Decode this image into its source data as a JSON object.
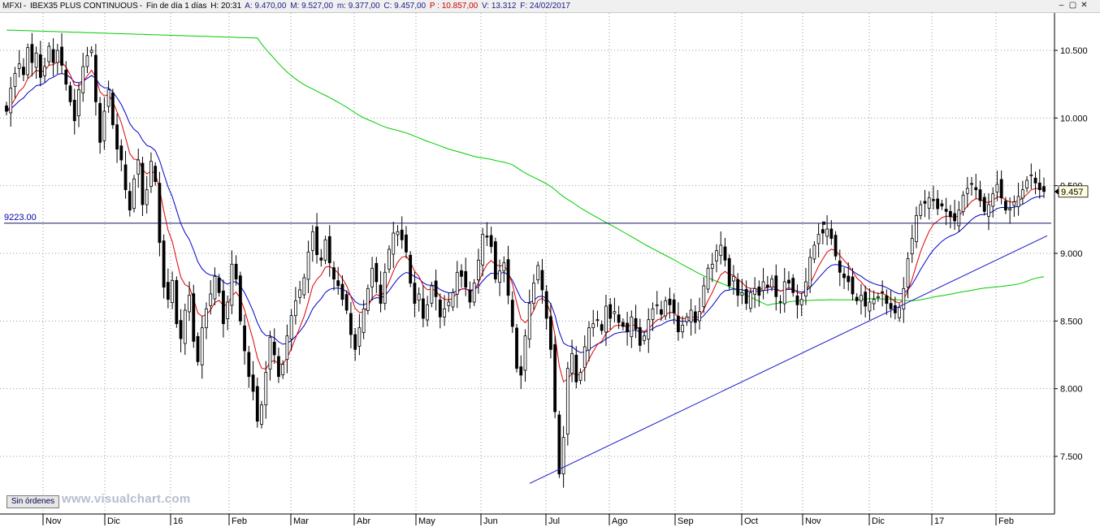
{
  "header": {
    "symbol": "MFXI",
    "name": "IBEX35 PLUS CONTINUOUS",
    "timeframe": "Fin de día 1 días",
    "hour": "H: 20:31",
    "open": "A: 9.470,00",
    "high": "M: 9.527,00",
    "low": "m: 9.377,00",
    "close": "C: 9.457,00",
    "prev": "P : 10.857,00",
    "volume": "V: 13.312",
    "date": "F: 24/02/2017"
  },
  "window_controls": [
    "minimize-icon",
    "restore-icon",
    "close-icon"
  ],
  "status": {
    "orders_button": "Sin órdenes",
    "watermark": "www.visualchart.com"
  },
  "colors": {
    "candle": "#000000",
    "ma_fast": "#dd0000",
    "ma_mid": "#0000cc",
    "ma_slow": "#00cc00",
    "trendline": "#1a1ac8",
    "level_line": "#101060"
  },
  "chart_data": {
    "type": "candlestick",
    "ylim": [
      7200,
      10800
    ],
    "y_ticks": [
      "7.500",
      "8.000",
      "8.500",
      "9.000",
      "9.500",
      "10.000",
      "10.500"
    ],
    "x_labels": [
      "Nov",
      "Dic",
      "16",
      "Feb",
      "Mar",
      "Abr",
      "May",
      "Jun",
      "Jul",
      "Ago",
      "Sep",
      "Oct",
      "Nov",
      "Dic",
      "17",
      "Feb"
    ],
    "last_price_label": "9.457",
    "horizontal_level": {
      "value": 9223,
      "label": "9223.00"
    },
    "trendline": {
      "from_value": 7300,
      "to_value": 9130
    },
    "candles_close": [
      10050,
      10220,
      10330,
      10400,
      10320,
      10520,
      10410,
      10480,
      10300,
      10380,
      10530,
      10410,
      10500,
      10390,
      10250,
      10120,
      9980,
      10210,
      10380,
      10460,
      10500,
      10120,
      9820,
      10050,
      10210,
      9950,
      9770,
      9690,
      9470,
      9320,
      9550,
      9690,
      9360,
      9470,
      9680,
      9530,
      9080,
      8750,
      8660,
      8800,
      8480,
      8370,
      8580,
      8690,
      8350,
      8200,
      8450,
      8590,
      8700,
      8830,
      8710,
      8480,
      8640,
      8920,
      8810,
      8500,
      8280,
      8090,
      7980,
      7760,
      7880,
      8120,
      8380,
      8250,
      8090,
      8180,
      8390,
      8540,
      8650,
      8730,
      8820,
      9010,
      9160,
      8990,
      8950,
      9100,
      8930,
      8810,
      8760,
      8660,
      8580,
      8400,
      8290,
      8450,
      8590,
      8740,
      8890,
      8790,
      8630,
      8860,
      9030,
      9150,
      9160,
      9100,
      9010,
      8780,
      8630,
      8700,
      8520,
      8620,
      8760,
      8680,
      8530,
      8590,
      8640,
      8710,
      8860,
      8830,
      8750,
      8640,
      8780,
      8950,
      9140,
      9120,
      9050,
      8810,
      8870,
      8930,
      8690,
      8460,
      8150,
      8100,
      8390,
      8630,
      8780,
      8910,
      8730,
      8520,
      8290,
      7830,
      7370,
      7640,
      8150,
      8260,
      8050,
      8120,
      8310,
      8450,
      8480,
      8510,
      8430,
      8610,
      8520,
      8570,
      8490,
      8460,
      8420,
      8530,
      8440,
      8320,
      8390,
      8510,
      8590,
      8620,
      8550,
      8650,
      8620,
      8560,
      8420,
      8470,
      8530,
      8580,
      8490,
      8570,
      8760,
      8890,
      8920,
      9020,
      9060,
      8950,
      8760,
      8830,
      8690,
      8710,
      8630,
      8710,
      8740,
      8690,
      8790,
      8750,
      8810,
      8680,
      8640,
      8790,
      8780,
      8710,
      8620,
      8660,
      8790,
      8970,
      9060,
      9140,
      9150,
      9180,
      9110,
      8980,
      8860,
      8820,
      8790,
      8700,
      8650,
      8690,
      8610,
      8640,
      8660,
      8680,
      8710,
      8630,
      8590,
      8560,
      8600,
      8740,
      8960,
      9110,
      9280,
      9360,
      9370,
      9410,
      9390,
      9330,
      9350,
      9310,
      9270,
      9240,
      9320,
      9430,
      9480,
      9510,
      9470,
      9390,
      9310,
      9360,
      9440,
      9510,
      9410,
      9320,
      9330,
      9380,
      9420,
      9470,
      9540,
      9580,
      9520,
      9470,
      9457
    ]
  }
}
